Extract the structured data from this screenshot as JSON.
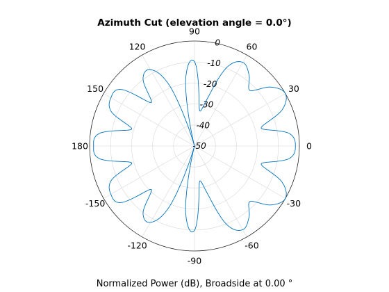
{
  "chart_data": {
    "type": "line",
    "subtype": "polar",
    "title": "Azimuth Cut (elevation angle = 0.0°)",
    "xlabel": "Normalized Power (dB), Broadside at 0.00 °",
    "ylabel": "",
    "angle_unit": "degrees",
    "angle_ticks": [
      0,
      30,
      60,
      90,
      120,
      150,
      180,
      -150,
      -120,
      -90,
      -60,
      -30
    ],
    "angle_tick_labels": [
      "0",
      "30",
      "60",
      "90",
      "120",
      "150",
      "180",
      "-150",
      "-120",
      "-90",
      "-60",
      "-30"
    ],
    "radial_ticks": [
      -50,
      -40,
      -30,
      -20,
      -10,
      0
    ],
    "radial_tick_labels": [
      "-50",
      "-40",
      "-30",
      "-20",
      "-10",
      "0"
    ],
    "radial_label_angle_deg": 80,
    "rlim": [
      -50,
      0
    ],
    "grid": true,
    "series_color": "#0072BD",
    "series": [
      {
        "name": "",
        "angles_deg": [
          0,
          7.5,
          15,
          22.5,
          30,
          37.5,
          45,
          52.5,
          60,
          67.5,
          75,
          82.5,
          90,
          97.5,
          105,
          112.5,
          120,
          127.5,
          135,
          142.5,
          150,
          157.5,
          165,
          172.5,
          180,
          -172.5,
          -165,
          -157.5,
          -150,
          -142.5,
          -135,
          -127.5,
          -120,
          -112.5,
          -105,
          -97.5,
          -90,
          -82.5,
          -75,
          -67.5,
          -60,
          -52.5,
          -45,
          -37.5,
          -30,
          -22.5,
          -15,
          -7.5
        ],
        "values_db": [
          -1.9,
          -4.4,
          -17.1,
          -4.7,
          0.0,
          -3.9,
          -12.6,
          -7.3,
          -4.0,
          -9.3,
          -26.9,
          -32.3,
          -9.8,
          -17.8,
          -50.0,
          -18.7,
          -8.0,
          -9.7,
          -20.8,
          -5.7,
          -4.0,
          -7.0,
          -19.0,
          -4.2,
          -1.9,
          -4.2,
          -19.0,
          -7.0,
          -4.0,
          -5.7,
          -20.8,
          -9.7,
          -8.0,
          -18.7,
          -50.0,
          -17.8,
          -9.8,
          -32.3,
          -26.9,
          -9.3,
          -4.0,
          -7.3,
          -12.6,
          -3.9,
          0.0,
          -4.7,
          -17.1,
          -4.4
        ]
      }
    ]
  }
}
